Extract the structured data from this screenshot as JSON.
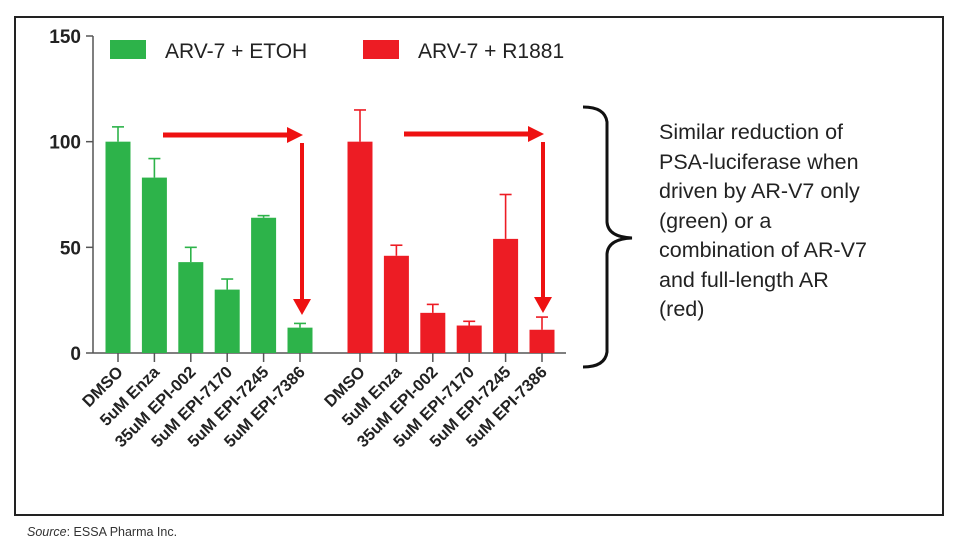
{
  "chart_data": {
    "type": "bar",
    "title": "",
    "xlabel": "",
    "ylabel": "",
    "ylim": [
      0,
      150
    ],
    "yticks": [
      0,
      50,
      100,
      150
    ],
    "grid": false,
    "legend_position": "top",
    "categories": [
      "DMSO",
      "5uM Enza",
      "35uM EPI-002",
      "5uM EPI-7170",
      "5uM EPI-7245",
      "5uM EPI-7386"
    ],
    "series": [
      {
        "name": "ARV-7 + ETOH",
        "color": "#2db34a",
        "values": [
          100,
          83,
          43,
          30,
          64,
          12
        ],
        "error_upper": [
          107,
          92,
          50,
          35,
          65,
          14
        ]
      },
      {
        "name": "ARV-7 + R1881",
        "color": "#ed1c24",
        "values": [
          100,
          46,
          19,
          13,
          54,
          11
        ],
        "error_upper": [
          115,
          51,
          23,
          15,
          75,
          17
        ]
      }
    ],
    "annotations": {
      "arrow_color": "#ee1111",
      "note": "Similar reduction of\nPSA-luciferase when\ndriven by AR-V7 only\n(green) or a\ncombination of AR-V7\nand full-length AR\n(red)"
    }
  },
  "source": {
    "label": "Source",
    "text": ": ESSA Pharma Inc."
  }
}
